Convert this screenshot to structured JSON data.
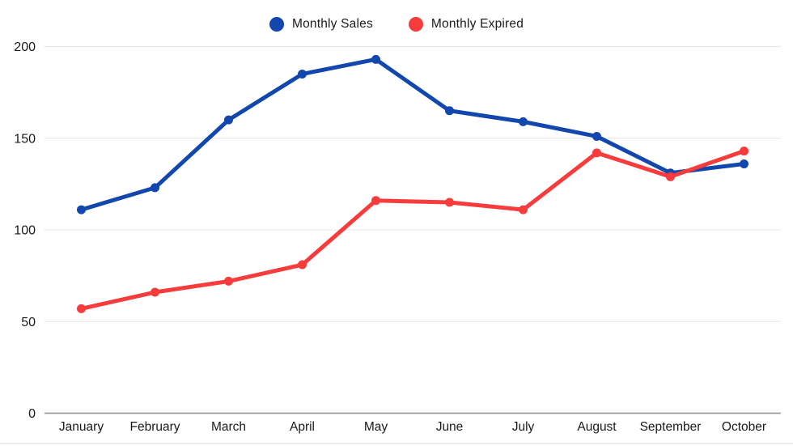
{
  "chart_data": {
    "type": "line",
    "title": "",
    "categories": [
      "January",
      "February",
      "March",
      "April",
      "May",
      "June",
      "July",
      "August",
      "September",
      "October"
    ],
    "series": [
      {
        "name": "Monthly Sales",
        "color": "#1247ae",
        "values": [
          111,
          123,
          160,
          185,
          193,
          165,
          159,
          151,
          131,
          136
        ]
      },
      {
        "name": "Monthly Expired",
        "color": "#f83b3b",
        "values": [
          57,
          66,
          72,
          81,
          116,
          115,
          111,
          142,
          129,
          143
        ]
      }
    ],
    "xlabel": "",
    "ylabel": "",
    "ylim": [
      0,
      200
    ],
    "y_ticks": [
      0,
      50,
      100,
      150,
      200
    ],
    "grid": "horizontal-only",
    "legend_position": "top-center",
    "styles": {
      "background": "#ffffff",
      "gridline_color": "#e9e9e9",
      "zero_line_color": "#9b9b9b",
      "label_color": "#1a1a1a",
      "line_width": 5,
      "point_radius": 5.5
    }
  }
}
